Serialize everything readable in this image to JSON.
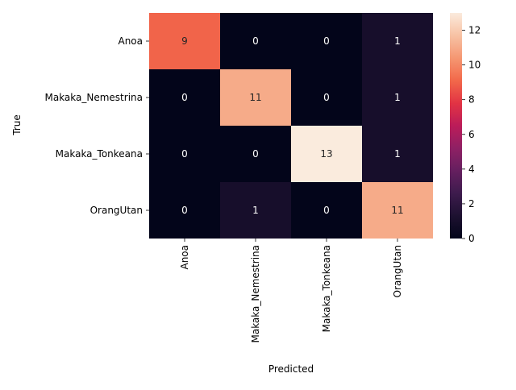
{
  "chart_data": {
    "type": "heatmap",
    "xlabel": "Predicted",
    "ylabel": "True",
    "x_categories": [
      "Anoa",
      "Makaka_Nemestrina",
      "Makaka_Tonkeana",
      "OrangUtan"
    ],
    "y_categories": [
      "Anoa",
      "Makaka_Nemestrina",
      "Makaka_Tonkeana",
      "OrangUtan"
    ],
    "matrix": [
      [
        9,
        0,
        0,
        1
      ],
      [
        0,
        11,
        0,
        1
      ],
      [
        0,
        0,
        13,
        1
      ],
      [
        0,
        1,
        0,
        11
      ]
    ],
    "colorbar": {
      "min": 0,
      "max": 13,
      "ticks": [
        0,
        2,
        4,
        6,
        8,
        10,
        12
      ]
    },
    "colormap": "rocket",
    "colors": {
      "light_text": "#ffffff",
      "dark_text": "#262626",
      "axis_text": "#000000"
    }
  }
}
